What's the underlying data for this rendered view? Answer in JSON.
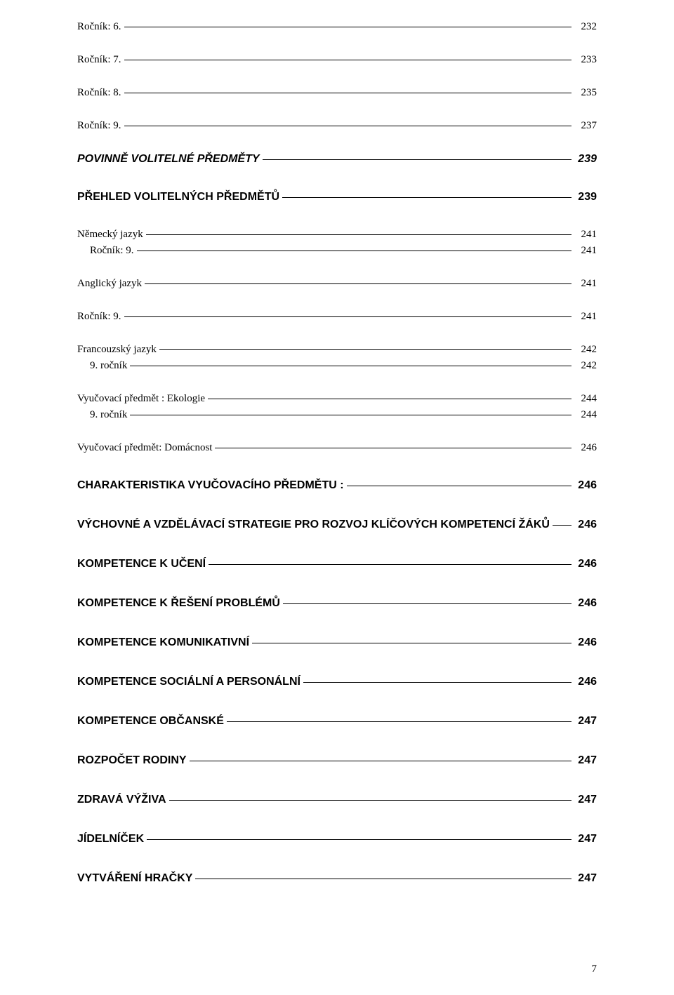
{
  "pageNumber": "7",
  "entries": [
    {
      "label": "Ročník: 6.",
      "page": "232",
      "variant": "plain",
      "indent": 0,
      "spacing": "sm",
      "fs": 15
    },
    {
      "label": "Ročník: 7.",
      "page": "233",
      "variant": "plain",
      "indent": 0,
      "spacing": "md",
      "fs": 15
    },
    {
      "label": "Ročník: 8.",
      "page": "235",
      "variant": "plain",
      "indent": 0,
      "spacing": "md",
      "fs": 15
    },
    {
      "label": "Ročník: 9.",
      "page": "237",
      "variant": "plain",
      "indent": 0,
      "spacing": "md",
      "fs": 15
    },
    {
      "label": "POVINNĚ VOLITELNÉ PŘEDMĚTY",
      "page": "239",
      "variant": "bolditalic",
      "indent": 0,
      "spacing": "md",
      "fs": 16
    },
    {
      "label": "PŘEHLED VOLITELNÝCH PŘEDMĚTŮ",
      "page": "239",
      "variant": "bold",
      "indent": 0,
      "spacing": "lg",
      "fs": 16
    },
    {
      "label": "Německý jazyk",
      "page": "241",
      "variant": "plain",
      "indent": 0,
      "spacing": "lg",
      "fs": 15
    },
    {
      "label": "Ročník: 9.",
      "page": "241",
      "variant": "plain",
      "indent": 1,
      "spacing": "sm",
      "fs": 15
    },
    {
      "label": "Anglický jazyk",
      "page": "241",
      "variant": "plain",
      "indent": 0,
      "spacing": "md",
      "fs": 15
    },
    {
      "label": "Ročník: 9.",
      "page": "241",
      "variant": "plain",
      "indent": 0,
      "spacing": "md",
      "fs": 15
    },
    {
      "label": "Francouzský jazyk",
      "page": "242",
      "variant": "plain",
      "indent": 0,
      "spacing": "md",
      "fs": 15
    },
    {
      "label": "9. ročník",
      "page": "242",
      "variant": "plain",
      "indent": 1,
      "spacing": "sm",
      "fs": 15
    },
    {
      "label": "Vyučovací předmět : Ekologie",
      "page": "244",
      "variant": "plain",
      "indent": 0,
      "spacing": "md",
      "fs": 15
    },
    {
      "label": "9. ročník",
      "page": "244",
      "variant": "plain",
      "indent": 1,
      "spacing": "sm",
      "fs": 15
    },
    {
      "label": "Vyučovací předmět: Domácnost",
      "page": "246",
      "variant": "plain",
      "indent": 0,
      "spacing": "md",
      "fs": 15
    },
    {
      "label": "CHARAKTERISTIKA VYUČOVACÍHO PŘEDMĚTU :",
      "page": "246",
      "variant": "bold",
      "indent": 0,
      "spacing": "lg",
      "fs": 16
    },
    {
      "label": "VÝCHOVNÉ A VZDĚLÁVACÍ STRATEGIE PRO ROZVOJ KLÍČOVÝCH KOMPETENCÍ ŽÁKŮ",
      "page": "246",
      "variant": "bold",
      "indent": 0,
      "spacing": "xl",
      "fs": 16
    },
    {
      "label": "KOMPETENCE K UČENÍ",
      "page": "246",
      "variant": "bold",
      "indent": 0,
      "spacing": "xl",
      "fs": 16
    },
    {
      "label": "KOMPETENCE K ŘEŠENÍ PROBLÉMŮ",
      "page": "246",
      "variant": "bold",
      "indent": 0,
      "spacing": "xl",
      "fs": 16
    },
    {
      "label": "KOMPETENCE KOMUNIKATIVNÍ",
      "page": "246",
      "variant": "bold",
      "indent": 0,
      "spacing": "xl",
      "fs": 16
    },
    {
      "label": "KOMPETENCE SOCIÁLNÍ A PERSONÁLNÍ",
      "page": "246",
      "variant": "bold",
      "indent": 0,
      "spacing": "xl",
      "fs": 16
    },
    {
      "label": "KOMPETENCE OBČANSKÉ",
      "page": "247",
      "variant": "bold",
      "indent": 0,
      "spacing": "xl",
      "fs": 16
    },
    {
      "label": "ROZPOČET RODINY",
      "page": "247",
      "variant": "bold",
      "indent": 0,
      "spacing": "xl",
      "fs": 16
    },
    {
      "label": "ZDRAVÁ VÝŽIVA",
      "page": "247",
      "variant": "bold",
      "indent": 0,
      "spacing": "xl",
      "fs": 16
    },
    {
      "label": "JÍDELNÍČEK",
      "page": "247",
      "variant": "bold",
      "indent": 0,
      "spacing": "xl",
      "fs": 16
    },
    {
      "label": "VYTVÁŘENÍ HRAČKY",
      "page": "247",
      "variant": "bold",
      "indent": 0,
      "spacing": "xl",
      "fs": 16
    }
  ]
}
